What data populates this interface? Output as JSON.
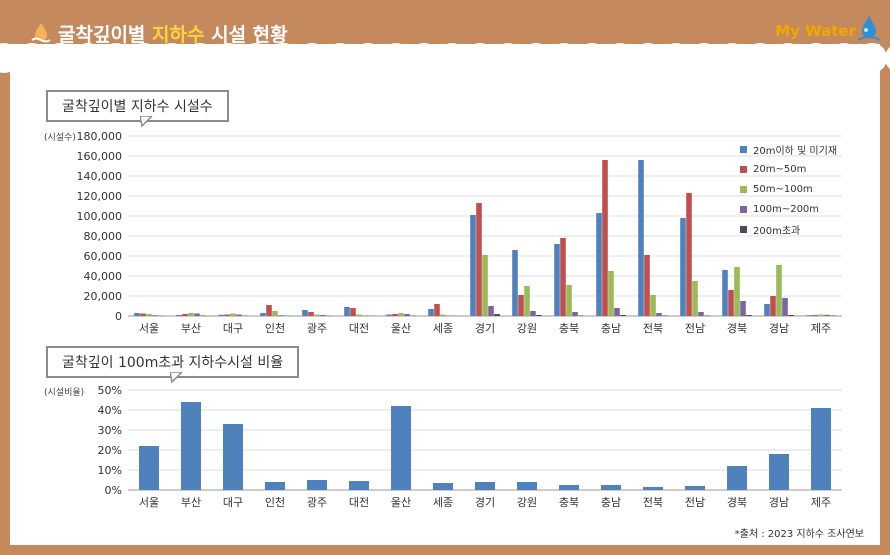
{
  "header": {
    "title_prefix": "굴착깊이별",
    "title_highlight": "지하수",
    "title_suffix": "시설 현황",
    "brand": "My Water"
  },
  "chart_data": [
    {
      "type": "bar",
      "title": "굴착깊이별 지하수 시설수",
      "ylabel": "(시설수)",
      "ylim": [
        0,
        180000
      ],
      "yticks": [
        "0",
        "20,000",
        "40,000",
        "60,000",
        "80,000",
        "100,000",
        "120,000",
        "140,000",
        "160,000",
        "180,000"
      ],
      "categories": [
        "서울",
        "부산",
        "대구",
        "인천",
        "광주",
        "대전",
        "울산",
        "세종",
        "경기",
        "강원",
        "충북",
        "충남",
        "전북",
        "전남",
        "경북",
        "경남",
        "제주"
      ],
      "legend_position": "top-right",
      "series": [
        {
          "name": "20m이하 및 미기재",
          "color": "#4f81bd",
          "values": [
            3000,
            1000,
            1200,
            3000,
            6000,
            9000,
            1500,
            7000,
            101000,
            66000,
            72000,
            103000,
            156000,
            98000,
            46000,
            12000,
            800
          ]
        },
        {
          "name": "20m~50m",
          "color": "#c0504d",
          "values": [
            2500,
            2000,
            1500,
            11000,
            4000,
            8000,
            2000,
            12000,
            113000,
            21000,
            78000,
            156000,
            61000,
            123000,
            26000,
            20000,
            1000
          ]
        },
        {
          "name": "50m~100m",
          "color": "#9bbb59",
          "values": [
            2000,
            3000,
            2500,
            5000,
            1500,
            1500,
            3000,
            1500,
            61000,
            30000,
            31000,
            45000,
            21000,
            35000,
            49000,
            51000,
            1500
          ]
        },
        {
          "name": "100m~200m",
          "color": "#8064a2",
          "values": [
            800,
            2500,
            1500,
            700,
            1000,
            500,
            2000,
            500,
            10000,
            5000,
            4000,
            8000,
            3000,
            4000,
            15000,
            18000,
            1200
          ]
        },
        {
          "name": "200m초과",
          "color": "#4a4a5a",
          "values": [
            200,
            500,
            300,
            200,
            200,
            200,
            300,
            100,
            2000,
            1000,
            500,
            1000,
            500,
            500,
            1000,
            1000,
            500
          ]
        }
      ]
    },
    {
      "type": "bar",
      "title": "굴착깊이 100m초과 지하수시설 비율",
      "ylabel": "(시설비율)",
      "ylim": [
        0,
        50
      ],
      "yticks": [
        "0%",
        "10%",
        "20%",
        "30%",
        "40%",
        "50%"
      ],
      "categories": [
        "서울",
        "부산",
        "대구",
        "인천",
        "광주",
        "대전",
        "울산",
        "세종",
        "경기",
        "강원",
        "충북",
        "충남",
        "전북",
        "전남",
        "경북",
        "경남",
        "제주"
      ],
      "series": [
        {
          "color": "#4f81bd",
          "values": [
            22,
            44,
            33,
            4,
            5,
            4.5,
            42,
            3.5,
            4,
            4,
            2.5,
            2.5,
            1.5,
            2,
            12,
            18,
            41
          ]
        }
      ]
    }
  ],
  "source": "*출처 : 2023 지하수 조사연보"
}
